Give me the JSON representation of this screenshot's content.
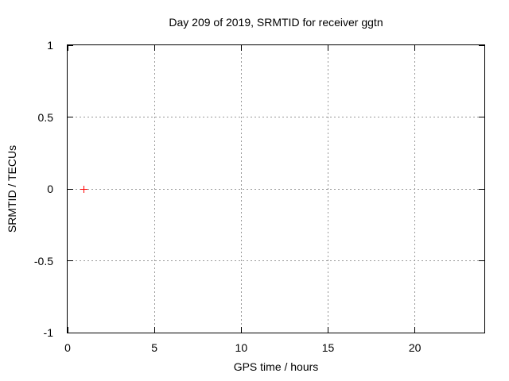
{
  "style": {
    "background": "#ffffff",
    "text_color": "#000000",
    "axis_color": "#000000",
    "grid_color": "#999999"
  },
  "chart_data": {
    "type": "scatter",
    "title": "Day 209 of 2019, SRMTID for receiver ggtn",
    "xlabel": "GPS time / hours",
    "ylabel": "SRMTID / TECUs",
    "xlim": [
      0,
      24
    ],
    "ylim": [
      -1,
      1
    ],
    "grid": true,
    "legend": "none",
    "x_ticks": [
      {
        "value": 0,
        "label": "0"
      },
      {
        "value": 5,
        "label": "5"
      },
      {
        "value": 10,
        "label": "10"
      },
      {
        "value": 15,
        "label": "15"
      },
      {
        "value": 20,
        "label": "20"
      }
    ],
    "y_ticks": [
      {
        "value": 1,
        "label": "1"
      },
      {
        "value": 0.5,
        "label": "0.5"
      },
      {
        "value": 0,
        "label": "0"
      },
      {
        "value": -0.5,
        "label": "-0.5"
      },
      {
        "value": -1,
        "label": "-1"
      }
    ],
    "series": [
      {
        "name": "SRMTID",
        "marker": "plus",
        "color": "#ff0000",
        "points": [
          [
            0.94,
            0.0
          ]
        ]
      }
    ]
  }
}
